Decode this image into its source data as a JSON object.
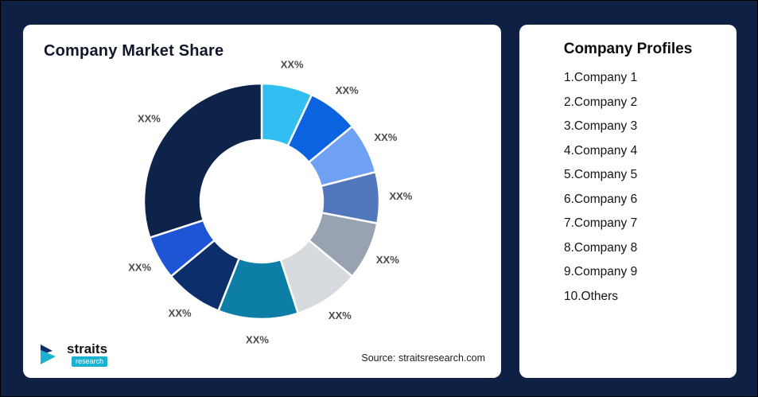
{
  "page": {
    "background": "#0e2145"
  },
  "market_share_card": {
    "title": "Company Market Share",
    "source": "Source: straitsresearch.com"
  },
  "logo": {
    "brand": "straits",
    "sub_brand": "research"
  },
  "profiles_card": {
    "title": "Company Profiles",
    "items": [
      "1.Company 1",
      "2.Company 2",
      "3.Company 3",
      "4.Company 4",
      "5.Company 5",
      "6.Company 6",
      "7.Company 7",
      "8.Company 8",
      "9.Company 9",
      "10.Others"
    ]
  },
  "chart_data": {
    "type": "pie",
    "title": "Company Market Share",
    "donut": true,
    "inner_radius_ratio": 0.52,
    "legend": "none",
    "labels": [
      "XX%",
      "XX%",
      "XX%",
      "XX%",
      "XX%",
      "XX%",
      "XX%",
      "XX%",
      "XX%",
      "XX%"
    ],
    "values": [
      7,
      7,
      7,
      7,
      8,
      9,
      11,
      8,
      6,
      30
    ],
    "colors": [
      "#33bef2",
      "#0b63e0",
      "#6fa1f2",
      "#5377bd",
      "#98a2b0",
      "#d7dadf",
      "#0d7fa6",
      "#0c2f6b",
      "#1d55d4",
      "#0d2349"
    ],
    "note": "All slice data labels show placeholder XX%; numeric values estimated from arc angles, clockwise from top."
  }
}
